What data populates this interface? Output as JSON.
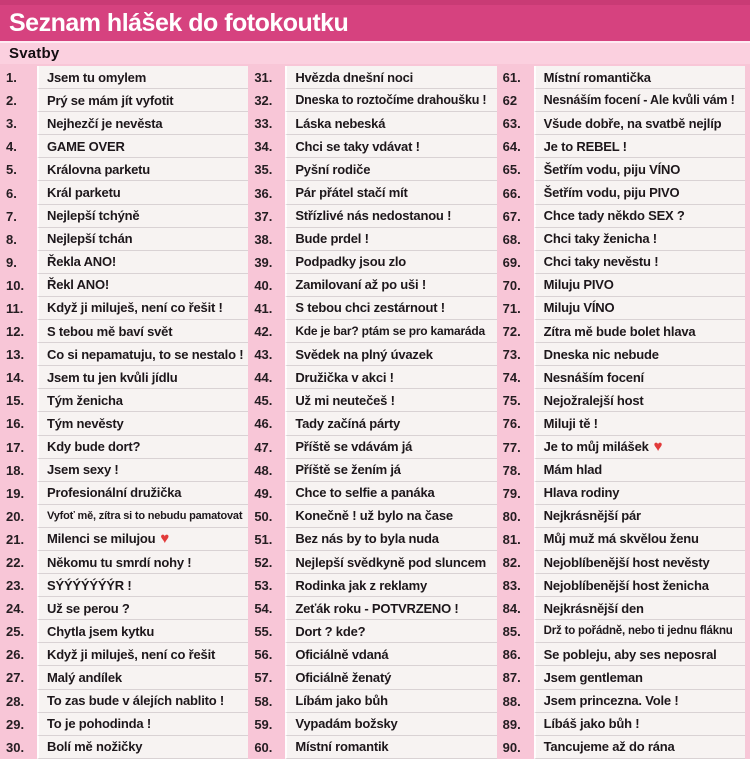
{
  "header": {
    "title": "Seznam hlášek do fotokoutku"
  },
  "section": {
    "label": "Svatby"
  },
  "icons": {
    "heart": "♥"
  },
  "colors": {
    "header_bg": "#d6427f",
    "header_top_strip": "#c93b75",
    "header_text": "#ffffff",
    "section_bg": "#fbd0df",
    "page_pink": "#f8c6d7",
    "cell_bg": "#f7f3f2",
    "separator": "#d9d2d4",
    "text": "#1d171b",
    "heart_red": "#e23a3a"
  },
  "list": {
    "columns": [
      {
        "items": [
          {
            "num": "1.",
            "text": "Jsem tu omylem"
          },
          {
            "num": "2.",
            "text": "Prý se mám jít vyfotit"
          },
          {
            "num": "3.",
            "text": "Nejhezčí je nevěsta"
          },
          {
            "num": "4.",
            "text": "GAME OVER"
          },
          {
            "num": "5.",
            "text": "Královna parketu"
          },
          {
            "num": "6.",
            "text": "Král parketu"
          },
          {
            "num": "7.",
            "text": "Nejlepší tchýně"
          },
          {
            "num": "8.",
            "text": "Nejlepší tchán"
          },
          {
            "num": "9.",
            "text": "Řekla ANO!"
          },
          {
            "num": "10.",
            "text": "Řekl ANO!"
          },
          {
            "num": "11.",
            "text": "Když ji miluješ, není co řešit !"
          },
          {
            "num": "12.",
            "text": "S tebou mě baví svět"
          },
          {
            "num": "13.",
            "text": "Co si nepamatuju, to se nestalo !"
          },
          {
            "num": "14.",
            "text": "Jsem tu jen kvůli jídlu"
          },
          {
            "num": "15.",
            "text": "Tým ženicha"
          },
          {
            "num": "16.",
            "text": "Tým nevěsty"
          },
          {
            "num": "17.",
            "text": "Kdy bude dort?"
          },
          {
            "num": "18.",
            "text": "Jsem sexy !"
          },
          {
            "num": "19.",
            "text": "Profesionální družička"
          },
          {
            "num": "20.",
            "text": "Vyfoť mě, zítra si to nebudu pamatovat"
          },
          {
            "num": "21.",
            "text": "Milenci se milujou",
            "heart": true
          },
          {
            "num": "22.",
            "text": "Někomu tu smrdí nohy !"
          },
          {
            "num": "23.",
            "text": "SÝÝÝÝÝÝÝR !"
          },
          {
            "num": "24.",
            "text": "Už se perou ?"
          },
          {
            "num": "25.",
            "text": "Chytla jsem kytku"
          },
          {
            "num": "26.",
            "text": "Když ji miluješ, není co řešit"
          },
          {
            "num": "27.",
            "text": "Malý andílek"
          },
          {
            "num": "28.",
            "text": "To zas bude v álejích nablito !"
          },
          {
            "num": "29.",
            "text": "To je pohodinda !"
          },
          {
            "num": "30.",
            "text": "Bolí mě nožičky"
          }
        ]
      },
      {
        "items": [
          {
            "num": "31.",
            "text": "Hvězda dnešní noci"
          },
          {
            "num": "32.",
            "text": "Dneska to roztočíme drahoušku !"
          },
          {
            "num": "33.",
            "text": "Láska nebeská"
          },
          {
            "num": "34.",
            "text": "Chci se taky vdávat !"
          },
          {
            "num": "35.",
            "text": "Pyšní rodiče"
          },
          {
            "num": "36.",
            "text": "Pár přátel stačí mít"
          },
          {
            "num": "37.",
            "text": "Střízlivé nás nedostanou !"
          },
          {
            "num": "38.",
            "text": "Bude prdel !"
          },
          {
            "num": "39.",
            "text": "Podpadky jsou zlo"
          },
          {
            "num": "40.",
            "text": "Zamilovaní až po uši !"
          },
          {
            "num": "41.",
            "text": "S tebou chci zestárnout !"
          },
          {
            "num": "42.",
            "text": "Kde je bar? ptám se pro kamaráda"
          },
          {
            "num": "43.",
            "text": "Svědek na plný úvazek"
          },
          {
            "num": "44.",
            "text": "Družička v akci !"
          },
          {
            "num": "45.",
            "text": "Už mi neutečeš !"
          },
          {
            "num": "46.",
            "text": "Tady začíná párty"
          },
          {
            "num": "47.",
            "text": "Příště se vdávám já"
          },
          {
            "num": "48.",
            "text": "Příště se žením já"
          },
          {
            "num": "49.",
            "text": "Chce to selfie a panáka"
          },
          {
            "num": "50.",
            "text": "Konečně ! už bylo na čase"
          },
          {
            "num": "51.",
            "text": "Bez nás by to byla nuda"
          },
          {
            "num": "52.",
            "text": "Nejlepší svědkyně pod sluncem"
          },
          {
            "num": "53.",
            "text": "Rodinka jak z reklamy"
          },
          {
            "num": "54.",
            "text": "Zeťák roku - POTVRZENO !"
          },
          {
            "num": "55.",
            "text": "Dort ? kde?"
          },
          {
            "num": "56.",
            "text": "Oficiálně vdaná"
          },
          {
            "num": "57.",
            "text": "Oficiálně ženatý"
          },
          {
            "num": "58.",
            "text": "Líbám jako bůh"
          },
          {
            "num": "59.",
            "text": "Vypadám božsky"
          },
          {
            "num": "60.",
            "text": "Místní romantik"
          }
        ]
      },
      {
        "items": [
          {
            "num": "61.",
            "text": "Místní romantička"
          },
          {
            "num": "62",
            "text": "Nesnáším focení - Ale kvůli vám !"
          },
          {
            "num": "63.",
            "text": "Všude dobře, na svatbě nejlíp"
          },
          {
            "num": "64.",
            "text": "Je to REBEL !"
          },
          {
            "num": "65.",
            "text": "Šetřím vodu, piju VÍNO"
          },
          {
            "num": "66.",
            "text": "Šetřím vodu, piju PIVO"
          },
          {
            "num": "67.",
            "text": "Chce tady někdo SEX ?"
          },
          {
            "num": "68.",
            "text": "Chci taky ženicha !"
          },
          {
            "num": "69.",
            "text": "Chci taky nevěstu !"
          },
          {
            "num": "70.",
            "text": "Miluju PIVO"
          },
          {
            "num": "71.",
            "text": "Miluju VÍNO"
          },
          {
            "num": "72.",
            "text": "Zítra mě bude bolet hlava"
          },
          {
            "num": "73.",
            "text": "Dneska nic nebude"
          },
          {
            "num": "74.",
            "text": "Nesnáším focení"
          },
          {
            "num": "75.",
            "text": "Nejožralejší host"
          },
          {
            "num": "76.",
            "text": "Miluji tě !"
          },
          {
            "num": "77.",
            "text": "Je to můj milášek",
            "heart": true
          },
          {
            "num": "78.",
            "text": "Mám hlad"
          },
          {
            "num": "79.",
            "text": "Hlava rodiny"
          },
          {
            "num": "80.",
            "text": "Nejkrásnější pár"
          },
          {
            "num": "81.",
            "text": "Můj muž má skvělou ženu"
          },
          {
            "num": "82.",
            "text": "Nejoblíbenější host nevěsty"
          },
          {
            "num": "83.",
            "text": "Nejoblíbenější host ženicha"
          },
          {
            "num": "84.",
            "text": "Nejkrásnější den"
          },
          {
            "num": "85.",
            "text": "Drž to pořádně, nebo ti jednu fláknu"
          },
          {
            "num": "86.",
            "text": "Se pobleju, aby ses neposral"
          },
          {
            "num": "87.",
            "text": "Jsem gentleman"
          },
          {
            "num": "88.",
            "text": "Jsem princezna. Vole !"
          },
          {
            "num": "89.",
            "text": "Líbáš jako bůh !"
          },
          {
            "num": "90.",
            "text": "Tancujeme až do rána"
          }
        ]
      }
    ]
  }
}
